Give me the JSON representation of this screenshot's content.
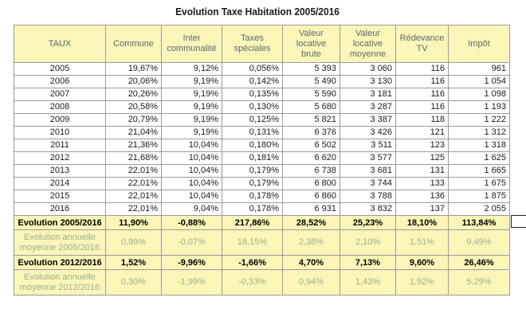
{
  "title": "Evolution Taxe Habitation 2005/2016",
  "headers": [
    "TAUX",
    "Commune",
    "Inter communalité",
    "Taxes spéciales",
    "Valeur locative brute",
    "Valeur locative moyenne",
    "Rédevance TV",
    "Impôt"
  ],
  "rows": [
    [
      "2005",
      "19,67%",
      "9,12%",
      "0,056%",
      "5 393",
      "3 060",
      "116",
      "961"
    ],
    [
      "2006",
      "20,06%",
      "9,19%",
      "0,142%",
      "5 490",
      "3 130",
      "116",
      "1 054"
    ],
    [
      "2007",
      "20,26%",
      "9,19%",
      "0,135%",
      "5 590",
      "3 181",
      "116",
      "1 098"
    ],
    [
      "2008",
      "20,58%",
      "9,19%",
      "0,130%",
      "5 680",
      "3 287",
      "116",
      "1 193"
    ],
    [
      "2009",
      "20,79%",
      "9,19%",
      "0,125%",
      "5 821",
      "3 387",
      "118",
      "1 222"
    ],
    [
      "2010",
      "21,04%",
      "9,19%",
      "0,131%",
      "6 376",
      "3 426",
      "121",
      "1 312"
    ],
    [
      "2011",
      "21,36%",
      "10,04%",
      "0,180%",
      "6 502",
      "3 511",
      "123",
      "1 318"
    ],
    [
      "2012",
      "21,68%",
      "10,04%",
      "0,181%",
      "6 620",
      "3 577",
      "125",
      "1 625"
    ],
    [
      "2013",
      "22,01%",
      "10,04%",
      "0,179%",
      "6 738",
      "3 681",
      "131",
      "1 665"
    ],
    [
      "2014",
      "22,01%",
      "10,04%",
      "0,179%",
      "6 800",
      "3 744",
      "133",
      "1 675"
    ],
    [
      "2015",
      "22,01%",
      "10,04%",
      "0,178%",
      "6 860",
      "3 788",
      "136",
      "1 875"
    ],
    [
      "2016",
      "22,01%",
      "9,04%",
      "0,178%",
      "6 931",
      "3 832",
      "137",
      "2 055"
    ]
  ],
  "summary": [
    {
      "kind": "evo",
      "cells": [
        "Evolution 2005/2016",
        "11,90%",
        "-0,88%",
        "217,86%",
        "28,52%",
        "25,23%",
        "18,10%",
        "113,84%"
      ]
    },
    {
      "kind": "avg",
      "cells": [
        "Evolution annuelle moyenne 2005/2016",
        "0,99%",
        "-0,07%",
        "18,15%",
        "2,38%",
        "2,10%",
        "1,51%",
        "9,49%"
      ]
    },
    {
      "kind": "evo",
      "cells": [
        "Evolution 2012/2016",
        "1,52%",
        "-9,96%",
        "-1,66%",
        "4,70%",
        "7,13%",
        "9,60%",
        "26,46%"
      ]
    },
    {
      "kind": "avg",
      "cells": [
        "Evolution annuelle moyenne 2012/2016",
        "0,30%",
        "-1,99%",
        "-0,33%",
        "0,94%",
        "1,43%",
        "1,92%",
        "5,29%"
      ]
    }
  ],
  "colors": {
    "header_fill": "#fbf5b8",
    "avg_text": "#9ab08a"
  }
}
